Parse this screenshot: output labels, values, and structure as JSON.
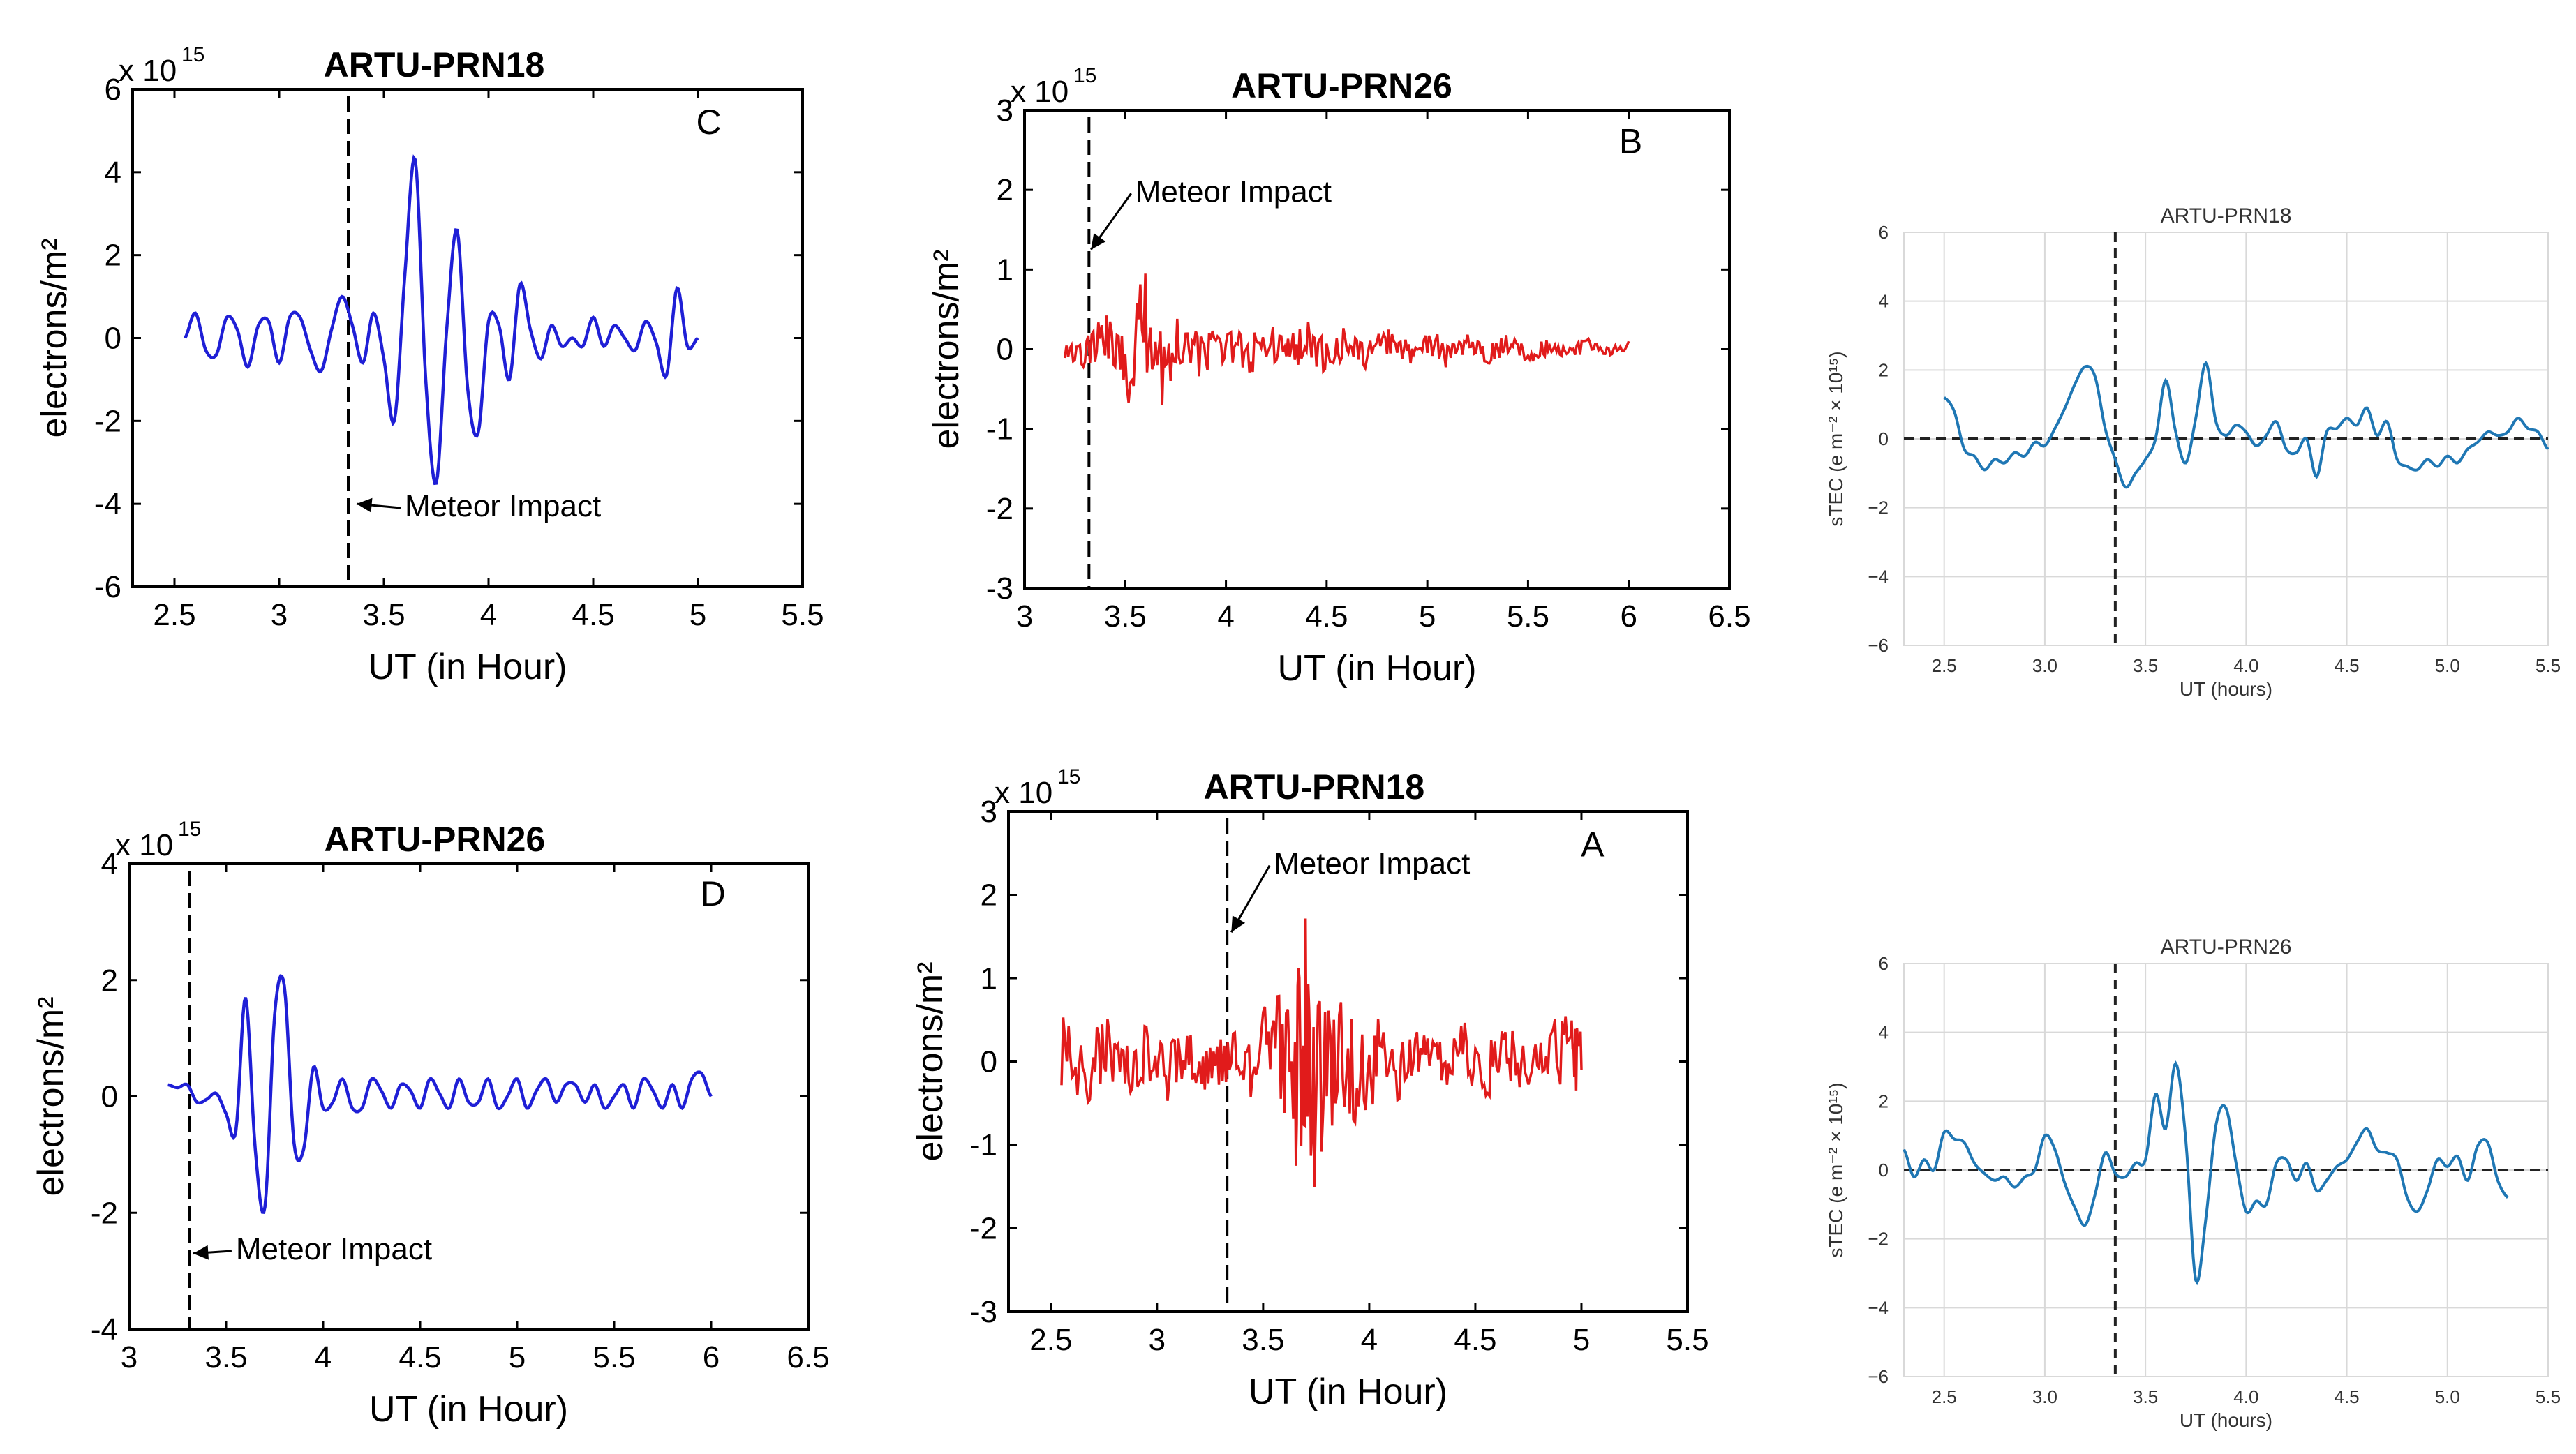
{
  "figure": {
    "colors": {
      "blue": "#1f1fd6",
      "red": "#e11b1b",
      "python_blue": "#1f77b4",
      "grid": "#d9d9d9"
    }
  },
  "chart_data": [
    {
      "id": "C",
      "type": "line",
      "title": "ARTU-PRN18",
      "panel_letter": "C",
      "xlabel": "UT (in Hour)",
      "ylabel": "electrons/m²",
      "y_multiplier": "x 10",
      "y_exponent": "15",
      "xlim": [
        2.3,
        5.5
      ],
      "ylim": [
        -6,
        6
      ],
      "xticks": [
        2.5,
        3,
        3.5,
        4,
        4.5,
        5,
        5.5
      ],
      "xtick_labels": [
        "2.5",
        "3",
        "3.5",
        "4",
        "4.5",
        "5",
        "5.5"
      ],
      "yticks": [
        -6,
        -4,
        -2,
        0,
        2,
        4,
        6
      ],
      "ytick_labels": [
        "-6",
        "-4",
        "-2",
        "0",
        "2",
        "4",
        "6"
      ],
      "impact_x": 3.33,
      "annotation": "Meteor Impact",
      "annotation_at": [
        3.6,
        -4.3
      ],
      "arrow_to": [
        3.37,
        -4.0
      ],
      "color": "blue",
      "x": [
        2.55,
        2.6,
        2.65,
        2.7,
        2.75,
        2.8,
        2.85,
        2.9,
        2.95,
        3.0,
        3.05,
        3.1,
        3.15,
        3.2,
        3.25,
        3.3,
        3.35,
        3.4,
        3.45,
        3.5,
        3.55,
        3.6,
        3.65,
        3.7,
        3.75,
        3.8,
        3.85,
        3.9,
        3.95,
        4.0,
        4.05,
        4.1,
        4.15,
        4.2,
        4.25,
        4.3,
        4.35,
        4.4,
        4.45,
        4.5,
        4.55,
        4.6,
        4.65,
        4.7,
        4.75,
        4.8,
        4.85,
        4.9,
        4.95,
        5.0
      ],
      "y": [
        0.0,
        0.6,
        -0.3,
        -0.4,
        0.5,
        0.2,
        -0.7,
        0.3,
        0.4,
        -0.6,
        0.5,
        0.5,
        -0.3,
        -0.8,
        0.2,
        1.0,
        0.3,
        -0.6,
        0.6,
        -0.5,
        -2.0,
        1.5,
        4.3,
        -1.0,
        -3.5,
        0.2,
        2.6,
        -1.2,
        -2.3,
        0.4,
        0.3,
        -1.0,
        1.3,
        0.2,
        -0.5,
        0.3,
        -0.2,
        0.0,
        -0.2,
        0.5,
        -0.2,
        0.3,
        0.0,
        -0.3,
        0.4,
        -0.1,
        -0.9,
        1.2,
        -0.2,
        0.0
      ]
    },
    {
      "id": "B",
      "type": "line",
      "title": "ARTU-PRN26",
      "panel_letter": "B",
      "xlabel": "UT (in Hour)",
      "ylabel": "electrons/m²",
      "y_multiplier": "x 10",
      "y_exponent": "15",
      "xlim": [
        3,
        6.5
      ],
      "ylim": [
        -3,
        3
      ],
      "xticks": [
        3,
        3.5,
        4,
        4.5,
        5,
        5.5,
        6,
        6.5
      ],
      "xtick_labels": [
        "3",
        "3.5",
        "4",
        "4.5",
        "5",
        "5.5",
        "6",
        "6.5"
      ],
      "yticks": [
        -3,
        -2,
        -1,
        0,
        1,
        2,
        3
      ],
      "ytick_labels": [
        "-3",
        "-2",
        "-1",
        "0",
        "1",
        "2",
        "3"
      ],
      "impact_x": 3.32,
      "annotation": "Meteor Impact",
      "annotation_at": [
        3.55,
        1.85
      ],
      "arrow_to": [
        3.33,
        1.25
      ],
      "color": "red",
      "x": [
        3.2,
        3.3,
        3.4,
        3.5,
        3.6,
        3.7,
        3.8,
        3.9,
        4.0,
        4.1,
        4.2,
        4.3,
        4.4,
        4.5,
        4.6,
        4.7,
        4.8,
        4.9,
        5.0,
        5.1,
        5.2,
        5.3,
        5.4,
        5.5,
        5.6,
        5.7,
        5.8,
        5.9,
        6.0
      ],
      "y": [
        0.2,
        -0.3,
        0.5,
        -0.5,
        1.0,
        -0.6,
        0.6,
        -0.4,
        0.5,
        -0.4,
        0.4,
        -0.3,
        0.4,
        -0.4,
        0.3,
        -0.3,
        0.3,
        -0.2,
        0.3,
        -0.2,
        0.2,
        -0.2,
        0.2,
        -0.2,
        0.15,
        -0.15,
        0.15,
        -0.1,
        0.1
      ],
      "noise_amplitude": 0.6
    },
    {
      "id": "D",
      "type": "line",
      "title": "ARTU-PRN26",
      "panel_letter": "D",
      "xlabel": "UT (in Hour)",
      "ylabel": "electrons/m²",
      "y_multiplier": "x 10",
      "y_exponent": "15",
      "xlim": [
        3,
        6.5
      ],
      "ylim": [
        -4,
        4
      ],
      "xticks": [
        3,
        3.5,
        4,
        4.5,
        5,
        5.5,
        6,
        6.5
      ],
      "xtick_labels": [
        "3",
        "3.5",
        "4",
        "4.5",
        "5",
        "5.5",
        "6",
        "6.5"
      ],
      "yticks": [
        -4,
        -2,
        0,
        2,
        4
      ],
      "ytick_labels": [
        "-4",
        "-2",
        "0",
        "2",
        "4"
      ],
      "impact_x": 3.31,
      "annotation": "Meteor Impact",
      "annotation_at": [
        3.55,
        -2.8
      ],
      "arrow_to": [
        3.33,
        -2.7
      ],
      "color": "blue",
      "x": [
        3.2,
        3.25,
        3.3,
        3.35,
        3.4,
        3.45,
        3.5,
        3.55,
        3.6,
        3.65,
        3.7,
        3.75,
        3.8,
        3.85,
        3.9,
        3.95,
        4.0,
        4.05,
        4.1,
        4.15,
        4.2,
        4.25,
        4.3,
        4.35,
        4.4,
        4.45,
        4.5,
        4.55,
        4.6,
        4.65,
        4.7,
        4.75,
        4.8,
        4.85,
        4.9,
        4.95,
        5.0,
        5.05,
        5.1,
        5.15,
        5.2,
        5.25,
        5.3,
        5.35,
        5.4,
        5.45,
        5.5,
        5.55,
        5.6,
        5.65,
        5.7,
        5.75,
        5.8,
        5.85,
        5.9,
        5.95,
        6.0
      ],
      "y": [
        0.2,
        0.15,
        0.2,
        -0.1,
        -0.05,
        0.05,
        -0.3,
        -0.6,
        1.7,
        -0.9,
        -1.9,
        1.4,
        1.9,
        -0.8,
        -0.9,
        0.5,
        -0.2,
        -0.1,
        0.3,
        -0.2,
        -0.2,
        0.3,
        0.1,
        -0.2,
        0.2,
        0.1,
        -0.2,
        0.3,
        0.05,
        -0.2,
        0.3,
        -0.1,
        -0.1,
        0.3,
        -0.2,
        0.0,
        0.3,
        -0.2,
        0.1,
        0.3,
        -0.1,
        0.2,
        0.2,
        -0.1,
        0.2,
        -0.2,
        0.0,
        0.2,
        -0.2,
        0.3,
        0.1,
        -0.2,
        0.2,
        -0.2,
        0.3,
        0.4,
        0.0
      ]
    },
    {
      "id": "A",
      "type": "line",
      "title": "ARTU-PRN18",
      "panel_letter": "A",
      "xlabel": "UT (in Hour)",
      "ylabel": "electrons/m²",
      "y_multiplier": "x 10",
      "y_exponent": "15",
      "xlim": [
        2.3,
        5.5
      ],
      "ylim": [
        -3,
        3
      ],
      "xticks": [
        2.5,
        3,
        3.5,
        4,
        4.5,
        5,
        5.5
      ],
      "xtick_labels": [
        "2.5",
        "3",
        "3.5",
        "4",
        "4.5",
        "5",
        "5.5"
      ],
      "yticks": [
        -3,
        -2,
        -1,
        0,
        1,
        2,
        3
      ],
      "ytick_labels": [
        "-3",
        "-2",
        "-1",
        "0",
        "1",
        "2",
        "3"
      ],
      "impact_x": 3.33,
      "annotation": "Meteor Impact",
      "annotation_at": [
        3.55,
        2.25
      ],
      "arrow_to": [
        3.35,
        1.55
      ],
      "color": "red",
      "x": [
        2.55,
        2.65,
        2.75,
        2.85,
        2.95,
        3.05,
        3.15,
        3.25,
        3.35,
        3.45,
        3.55,
        3.65,
        3.7,
        3.75,
        3.85,
        3.95,
        4.05,
        4.15,
        4.25,
        4.35,
        4.45,
        4.55,
        4.65,
        4.75,
        4.85,
        4.95,
        5.0
      ],
      "y": [
        0.4,
        -0.5,
        0.5,
        -0.4,
        0.4,
        -0.4,
        0.4,
        -0.4,
        0.4,
        -0.4,
        0.7,
        -0.9,
        1.6,
        -1.3,
        0.8,
        -0.7,
        0.5,
        -0.5,
        0.4,
        -0.4,
        0.4,
        -0.4,
        0.4,
        -0.3,
        0.3,
        0.5,
        -0.1
      ],
      "noise_amplitude": 0.85
    },
    {
      "id": "S1",
      "type": "line",
      "title": "ARTU-PRN18",
      "xlabel": "UT (hours)",
      "ylabel": "sTEC (e m⁻² × 10¹⁵)",
      "xlim": [
        2.3,
        5.5
      ],
      "ylim": [
        -6,
        6
      ],
      "xticks": [
        2.5,
        3.0,
        3.5,
        4.0,
        4.5,
        5.0,
        5.5
      ],
      "xtick_labels": [
        "2.5",
        "3.0",
        "3.5",
        "4.0",
        "4.5",
        "5.0",
        "5.5"
      ],
      "yticks": [
        -6,
        -4,
        -2,
        0,
        2,
        4,
        6
      ],
      "ytick_labels": [
        "−6",
        "−4",
        "−2",
        "0",
        "2",
        "4",
        "6"
      ],
      "impact_x": 3.35,
      "grid": true,
      "color": "python_blue",
      "x": [
        2.5,
        2.55,
        2.6,
        2.65,
        2.7,
        2.75,
        2.8,
        2.85,
        2.9,
        2.95,
        3.0,
        3.05,
        3.1,
        3.15,
        3.2,
        3.25,
        3.3,
        3.35,
        3.4,
        3.45,
        3.5,
        3.55,
        3.6,
        3.65,
        3.7,
        3.75,
        3.8,
        3.85,
        3.9,
        3.95,
        4.0,
        4.05,
        4.1,
        4.15,
        4.2,
        4.25,
        4.3,
        4.35,
        4.4,
        4.45,
        4.5,
        4.55,
        4.6,
        4.65,
        4.7,
        4.75,
        4.8,
        4.85,
        4.9,
        4.95,
        5.0,
        5.05,
        5.1,
        5.15,
        5.2,
        5.25,
        5.3,
        5.35,
        5.4,
        5.45,
        5.5
      ],
      "y": [
        1.2,
        0.8,
        -0.3,
        -0.5,
        -0.9,
        -0.6,
        -0.7,
        -0.4,
        -0.5,
        -0.1,
        -0.2,
        0.3,
        0.9,
        1.6,
        2.1,
        1.8,
        0.3,
        -0.6,
        -1.4,
        -1.0,
        -0.6,
        0.0,
        1.7,
        0.2,
        -0.7,
        0.6,
        2.2,
        0.5,
        0.1,
        0.4,
        0.2,
        -0.2,
        0.1,
        0.5,
        -0.3,
        -0.4,
        0.0,
        -1.1,
        0.2,
        0.3,
        0.6,
        0.4,
        0.9,
        0.1,
        0.5,
        -0.6,
        -0.8,
        -0.9,
        -0.6,
        -0.8,
        -0.5,
        -0.7,
        -0.3,
        -0.1,
        0.2,
        0.1,
        0.2,
        0.6,
        0.3,
        0.2,
        -0.3
      ]
    },
    {
      "id": "S2",
      "type": "line",
      "title": "ARTU-PRN26",
      "xlabel": "UT (hours)",
      "ylabel": "sTEC (e m⁻² × 10¹⁵)",
      "xlim": [
        2.3,
        5.5
      ],
      "ylim": [
        -6,
        6
      ],
      "xticks": [
        2.5,
        3.0,
        3.5,
        4.0,
        4.5,
        5.0,
        5.5
      ],
      "xtick_labels": [
        "2.5",
        "3.0",
        "3.5",
        "4.0",
        "4.5",
        "5.0",
        "5.5"
      ],
      "yticks": [
        -6,
        -4,
        -2,
        0,
        2,
        4,
        6
      ],
      "ytick_labels": [
        "−6",
        "−4",
        "−2",
        "0",
        "2",
        "4",
        "6"
      ],
      "impact_x": 3.35,
      "grid": true,
      "color": "python_blue",
      "x": [
        2.3,
        2.35,
        2.4,
        2.45,
        2.5,
        2.55,
        2.6,
        2.65,
        2.7,
        2.75,
        2.8,
        2.85,
        2.9,
        2.95,
        3.0,
        3.05,
        3.1,
        3.15,
        3.2,
        3.25,
        3.3,
        3.35,
        3.4,
        3.45,
        3.5,
        3.55,
        3.6,
        3.65,
        3.7,
        3.75,
        3.8,
        3.85,
        3.9,
        3.95,
        4.0,
        4.05,
        4.1,
        4.15,
        4.2,
        4.25,
        4.3,
        4.35,
        4.4,
        4.45,
        4.5,
        4.55,
        4.6,
        4.65,
        4.7,
        4.75,
        4.8,
        4.85,
        4.9,
        4.95,
        5.0,
        5.05,
        5.1,
        5.15,
        5.2,
        5.25,
        5.3
      ],
      "y": [
        0.6,
        -0.2,
        0.3,
        0.0,
        1.1,
        0.9,
        0.8,
        0.2,
        -0.1,
        -0.3,
        -0.2,
        -0.5,
        -0.2,
        0.0,
        1.0,
        0.6,
        -0.4,
        -1.1,
        -1.6,
        -0.7,
        0.5,
        -0.1,
        -0.2,
        0.2,
        0.3,
        2.2,
        1.2,
        3.1,
        0.9,
        -3.2,
        -1.4,
        1.3,
        1.8,
        0.2,
        -1.2,
        -0.9,
        -1.0,
        0.2,
        0.3,
        -0.3,
        0.2,
        -0.6,
        -0.3,
        0.1,
        0.3,
        0.8,
        1.2,
        0.6,
        0.5,
        0.3,
        -0.8,
        -1.2,
        -0.6,
        0.3,
        0.1,
        0.4,
        -0.3,
        0.7,
        0.8,
        -0.3,
        -0.8
      ]
    }
  ]
}
